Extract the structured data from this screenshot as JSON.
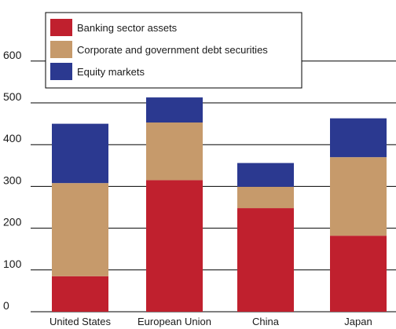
{
  "chart_data": {
    "type": "bar",
    "stacked": true,
    "categories": [
      "United States",
      "European Union",
      "China",
      "Japan"
    ],
    "series": [
      {
        "name": "Banking sector assets",
        "color": "#c0202e",
        "values": [
          85,
          315,
          248,
          182
        ]
      },
      {
        "name": "Corporate and government debt securities",
        "color": "#c69a6b",
        "values": [
          223,
          138,
          51,
          188
        ]
      },
      {
        "name": "Equity markets",
        "color": "#2b3990",
        "values": [
          142,
          60,
          57,
          93
        ]
      }
    ],
    "yticks": [
      "0",
      "100",
      "200",
      "300",
      "400",
      "500",
      "600"
    ],
    "ylim": [
      0,
      700
    ],
    "grid": true,
    "legend_position": "top-left"
  }
}
